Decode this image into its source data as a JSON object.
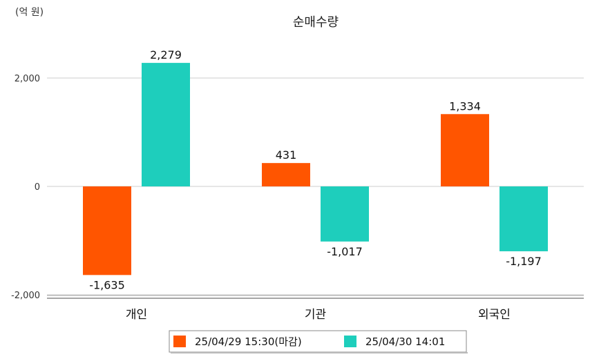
{
  "chart_data": {
    "type": "bar",
    "title": "순매수량",
    "unit_label": "(억 원)",
    "categories": [
      "개인",
      "기관",
      "외국인"
    ],
    "series": [
      {
        "name": "25/04/29 15:30(마감)",
        "color": "#ff5500",
        "values": [
          -1635,
          431,
          1334
        ]
      },
      {
        "name": "25/04/30 14:01",
        "color": "#1ecebc",
        "values": [
          2279,
          -1017,
          -1197
        ]
      }
    ],
    "data_labels": [
      [
        "-1,635",
        "431",
        "1,334"
      ],
      [
        "2,279",
        "-1,017",
        "-1,197"
      ]
    ],
    "yticks": [
      {
        "value": 2000,
        "label": "2,000"
      },
      {
        "value": 0,
        "label": "0"
      },
      {
        "value": -2000,
        "label": "-2,000"
      }
    ],
    "ylim": [
      -2000,
      2800
    ],
    "grid": true,
    "legend_position": "bottom-center"
  }
}
